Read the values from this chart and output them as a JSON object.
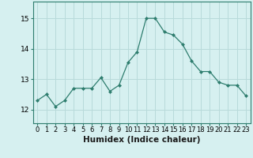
{
  "x": [
    0,
    1,
    2,
    3,
    4,
    5,
    6,
    7,
    8,
    9,
    10,
    11,
    12,
    13,
    14,
    15,
    16,
    17,
    18,
    19,
    20,
    21,
    22,
    23
  ],
  "y": [
    12.3,
    12.5,
    12.1,
    12.3,
    12.7,
    12.7,
    12.7,
    13.05,
    12.6,
    12.8,
    13.55,
    13.9,
    15.0,
    15.0,
    14.55,
    14.45,
    14.15,
    13.6,
    13.25,
    13.25,
    12.9,
    12.8,
    12.8,
    12.45
  ],
  "line_color": "#2e7d6e",
  "marker": "D",
  "marker_size": 2.0,
  "bg_color": "#d6f0f0",
  "grid_color": "#b8dada",
  "xlabel": "Humidex (Indice chaleur)",
  "xlabel_fontsize": 7.5,
  "tick_fontsize": 6.5,
  "ylim": [
    11.55,
    15.55
  ],
  "yticks": [
    12,
    13,
    14,
    15
  ],
  "xlim": [
    -0.5,
    23.5
  ]
}
